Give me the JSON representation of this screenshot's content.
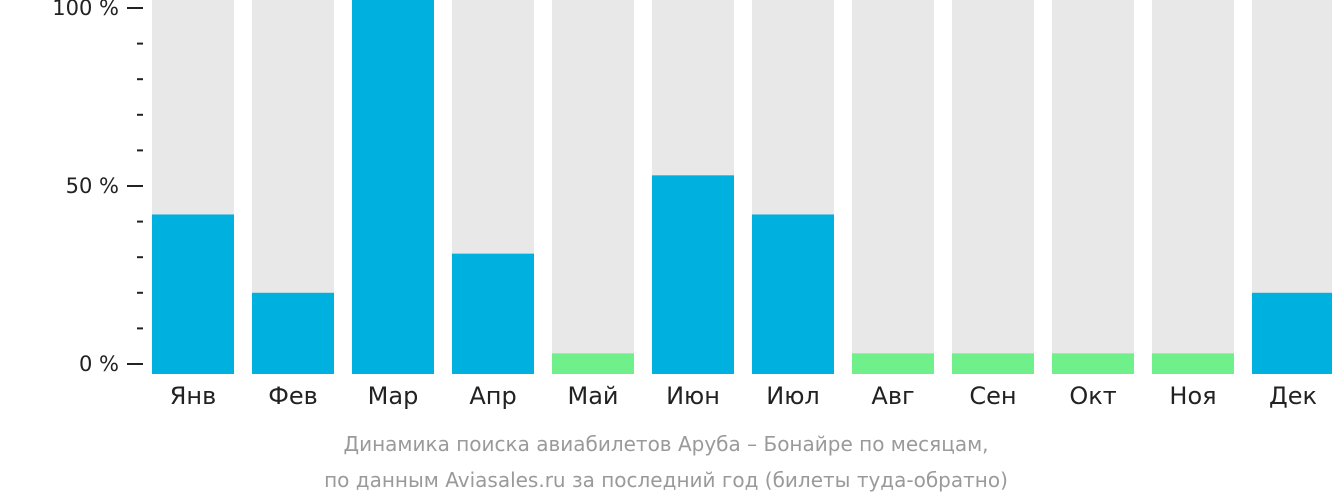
{
  "chart_data": {
    "type": "bar",
    "categories": [
      "Янв",
      "Фев",
      "Мар",
      "Апр",
      "Май",
      "Июн",
      "Июл",
      "Авг",
      "Сен",
      "Окт",
      "Ноя",
      "Дек"
    ],
    "values": [
      42,
      20,
      100,
      31,
      3,
      53,
      42,
      3,
      3,
      3,
      3,
      20
    ],
    "ylim": [
      0,
      100
    ],
    "yticks": [
      {
        "value": 0,
        "label": "0 %"
      },
      {
        "value": 50,
        "label": "50 %"
      },
      {
        "value": 100,
        "label": "100 %"
      }
    ],
    "minor_tick_step": 10,
    "title": "",
    "xlabel": "",
    "ylabel": "",
    "grid": false,
    "legend": "none",
    "colors": {
      "bar": "#00b0de",
      "low_bar": "#6ff08a",
      "background_bar": "#e8e8e8",
      "axis": "#222222"
    }
  },
  "caption": {
    "line1": "Динамика поиска авиабилетов Аруба – Бонайре по месяцам,",
    "line2": "по данным Aviasales.ru за последний год (билеты туда-обратно)"
  }
}
